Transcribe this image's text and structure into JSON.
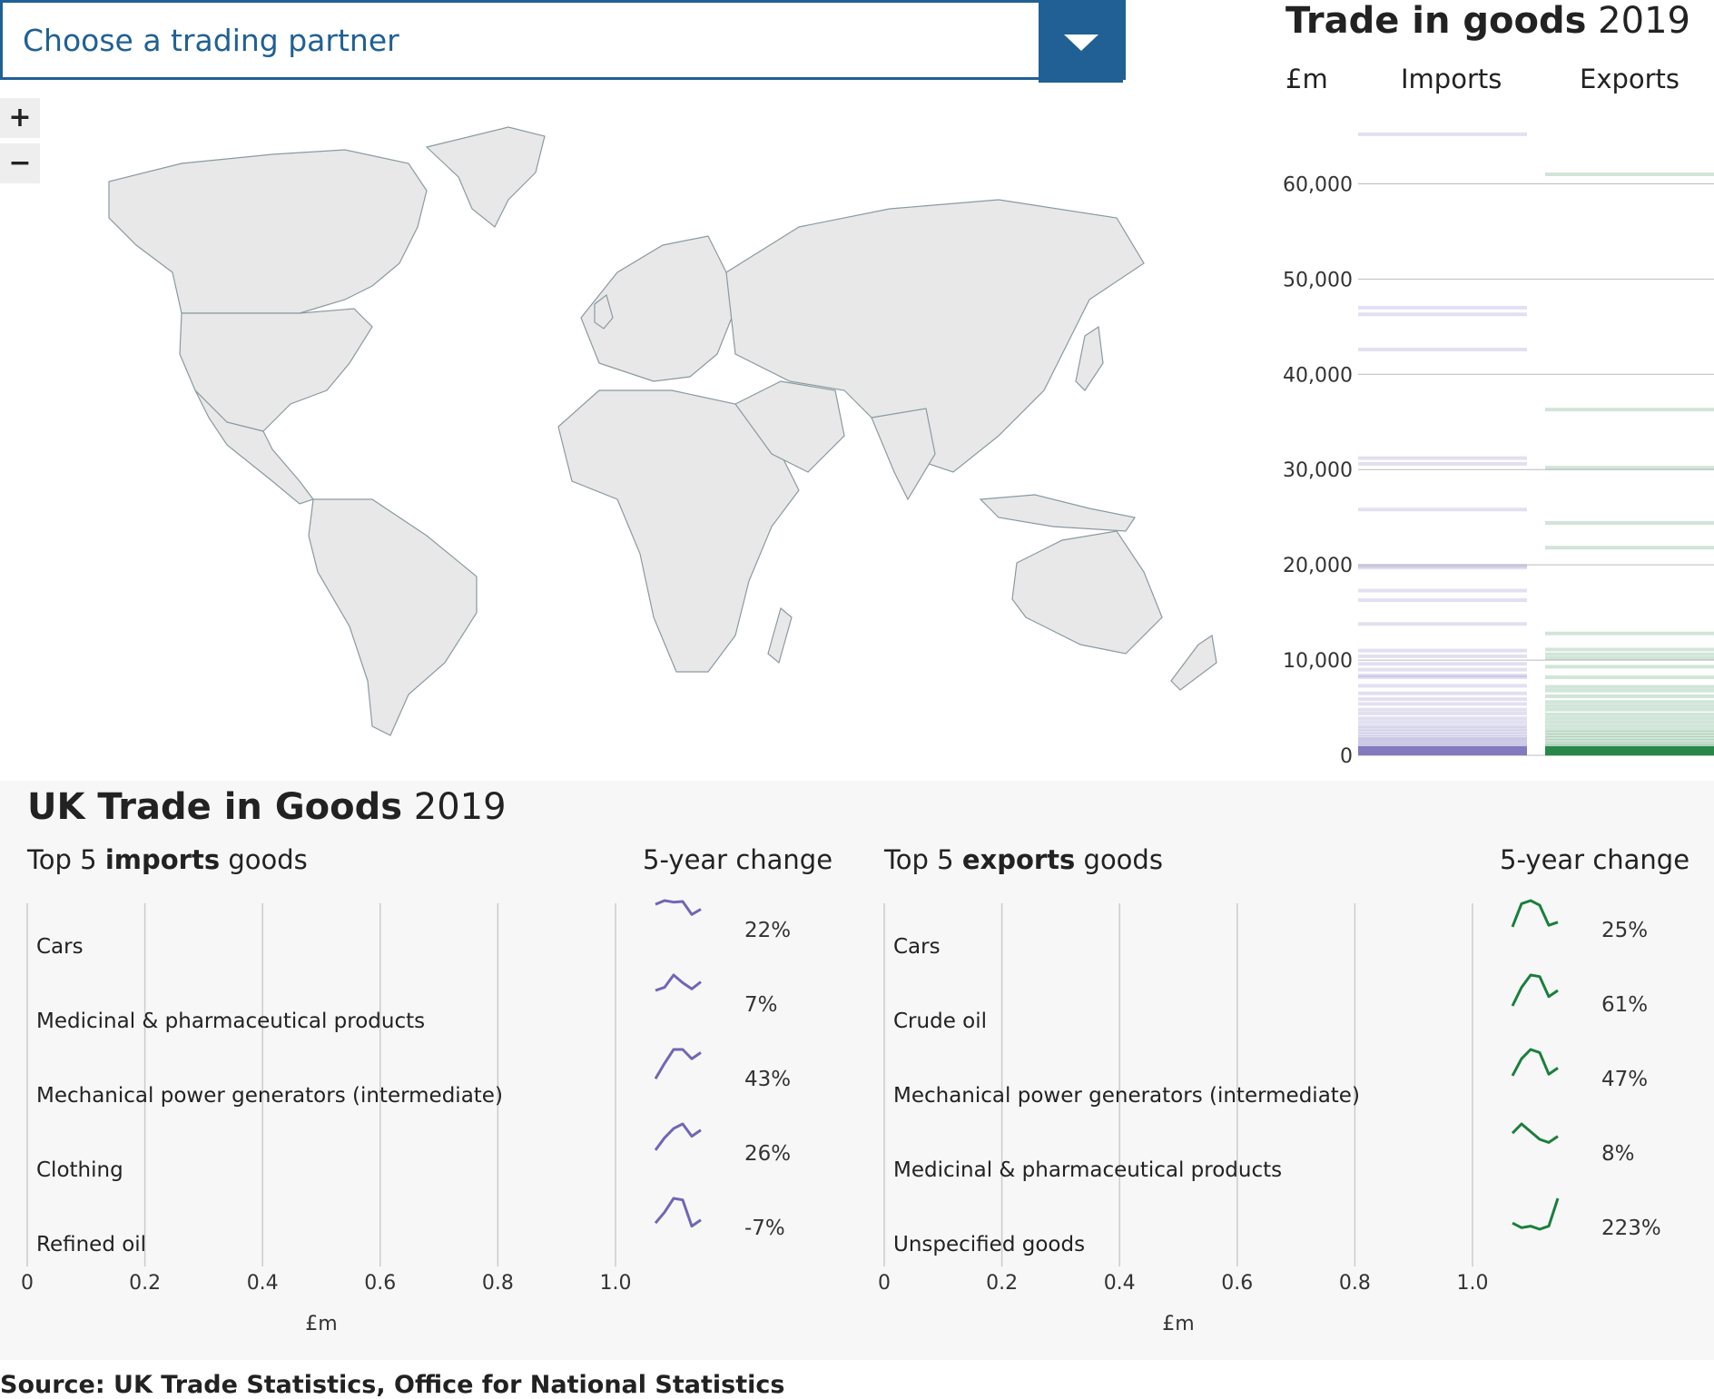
{
  "dropdown": {
    "placeholder": "Choose a trading partner"
  },
  "zoom": {
    "in_label": "+",
    "out_label": "−"
  },
  "strip_chart": {
    "title_bold": "Trade in goods",
    "title_year": "2019",
    "unit": "£m",
    "col_imports": "Imports",
    "col_exports": "Exports",
    "colors": {
      "imports": "#7066b5",
      "exports": "#1a7f3c"
    }
  },
  "bottom": {
    "title_bold": "UK Trade in Goods",
    "title_year": "2019",
    "imports_sub": {
      "pre": "Top 5 ",
      "bold": "imports",
      "post": " goods"
    },
    "exports_sub": {
      "pre": "Top 5 ",
      "bold": "exports",
      "post": " goods"
    },
    "change_label": "5-year change",
    "axis_unit": "£m"
  },
  "source": "Source: UK Trade Statistics, Office for National Statistics",
  "chart_data": [
    {
      "type": "strip",
      "title": "Trade in goods 2019",
      "ylabel": "£m",
      "ylim": [
        0,
        65000
      ],
      "yticks": [
        "0",
        "10,000",
        "20,000",
        "30,000",
        "40,000",
        "50,000",
        "60,000"
      ],
      "ytick_values": [
        0,
        10000,
        20000,
        30000,
        40000,
        50000,
        60000
      ],
      "series": [
        {
          "name": "Imports",
          "values": [
            65200,
            47000,
            46300,
            42600,
            31200,
            30600,
            25800,
            19900,
            19700,
            17300,
            16300,
            13800,
            11000,
            10400,
            9600,
            9000,
            8400,
            8200,
            7300,
            6500,
            5900,
            5400,
            4800,
            4400,
            3900,
            3500,
            3100,
            2800,
            2500,
            2200,
            1900,
            1700,
            1500,
            1300,
            1100,
            900,
            700,
            500,
            300,
            150
          ]
        },
        {
          "name": "Exports",
          "values": [
            61000,
            36300,
            30200,
            24400,
            21800,
            12800,
            11100,
            10600,
            10200,
            9300,
            8200,
            7200,
            6800,
            6200,
            5600,
            5200,
            4800,
            4300,
            3900,
            3500,
            3100,
            2700,
            2400,
            2100,
            1800,
            1500,
            1200,
            1000,
            800,
            600,
            400,
            250,
            120
          ]
        }
      ]
    },
    {
      "type": "bar",
      "title": "Top 5 imports goods",
      "categories": [
        "Cars",
        "Medicinal & pharmaceutical products",
        "Mechanical power generators (intermediate)",
        "Clothing",
        "Refined oil"
      ],
      "values": [
        0,
        0,
        0,
        0,
        0
      ],
      "five_year_change": [
        "22%",
        "7%",
        "43%",
        "26%",
        "-7%"
      ],
      "sparklines": [
        [
          0.88,
          1.0,
          0.95,
          0.97,
          0.55,
          0.72
        ],
        [
          0.5,
          0.6,
          1.0,
          0.75,
          0.55,
          0.78
        ],
        [
          0.05,
          0.55,
          1.0,
          1.0,
          0.7,
          0.9
        ],
        [
          0.15,
          0.55,
          0.85,
          1.0,
          0.6,
          0.8
        ],
        [
          0.2,
          0.55,
          1.0,
          0.95,
          0.1,
          0.3
        ]
      ],
      "xlabel": "£m",
      "xlim": [
        0,
        1.0
      ],
      "xticks": [
        "0",
        "0.2",
        "0.4",
        "0.6",
        "0.8",
        "1.0"
      ]
    },
    {
      "type": "bar",
      "title": "Top 5 exports goods",
      "categories": [
        "Cars",
        "Crude oil",
        "Mechanical power generators (intermediate)",
        "Medicinal & pharmaceutical products",
        "Unspecified goods"
      ],
      "values": [
        0,
        0,
        0,
        0,
        0
      ],
      "five_year_change": [
        "25%",
        "61%",
        "47%",
        "8%",
        "223%"
      ],
      "sparklines": [
        [
          0.15,
          0.9,
          1.0,
          0.85,
          0.2,
          0.3
        ],
        [
          0.0,
          0.6,
          1.0,
          0.95,
          0.3,
          0.5
        ],
        [
          0.15,
          0.7,
          1.0,
          0.9,
          0.2,
          0.4
        ],
        [
          0.7,
          1.0,
          0.75,
          0.5,
          0.4,
          0.6
        ],
        [
          0.2,
          0.05,
          0.1,
          0.0,
          0.1,
          1.0
        ]
      ],
      "xlabel": "£m",
      "xlim": [
        0,
        1.0
      ],
      "xticks": [
        "0",
        "0.2",
        "0.4",
        "0.6",
        "0.8",
        "1.0"
      ]
    }
  ]
}
